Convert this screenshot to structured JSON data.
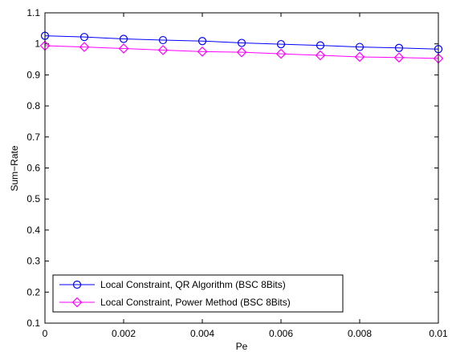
{
  "chart_data": {
    "type": "line",
    "title": "",
    "xlabel": "Pe",
    "ylabel": "Sum−Rate",
    "xlim": [
      0,
      0.01
    ],
    "ylim": [
      0.1,
      1.1
    ],
    "x_ticks": [
      "0",
      "0.002",
      "0.004",
      "0.006",
      "0.008",
      "0.01"
    ],
    "y_ticks": [
      "0.1",
      "0.2",
      "0.3",
      "0.4",
      "0.5",
      "0.6",
      "0.7",
      "0.8",
      "0.9",
      "1",
      "1.1"
    ],
    "grid": false,
    "legend_position": "bottom-left",
    "x": [
      0,
      0.001,
      0.002,
      0.003,
      0.004,
      0.005,
      0.006,
      0.007,
      0.008,
      0.009,
      0.01
    ],
    "series": [
      {
        "name": "Local Constraint, QR Algorithm (BSC 8Bits)",
        "color": "#0000ff",
        "marker": "circle",
        "values": [
          1.026,
          1.022,
          1.016,
          1.012,
          1.009,
          1.003,
          0.999,
          0.995,
          0.99,
          0.987,
          0.983
        ]
      },
      {
        "name": "Local Constraint, Power Method (BSC 8Bits)",
        "color": "#ff00ff",
        "marker": "diamond",
        "values": [
          0.994,
          0.99,
          0.985,
          0.98,
          0.975,
          0.973,
          0.968,
          0.963,
          0.958,
          0.956,
          0.953
        ]
      }
    ]
  }
}
